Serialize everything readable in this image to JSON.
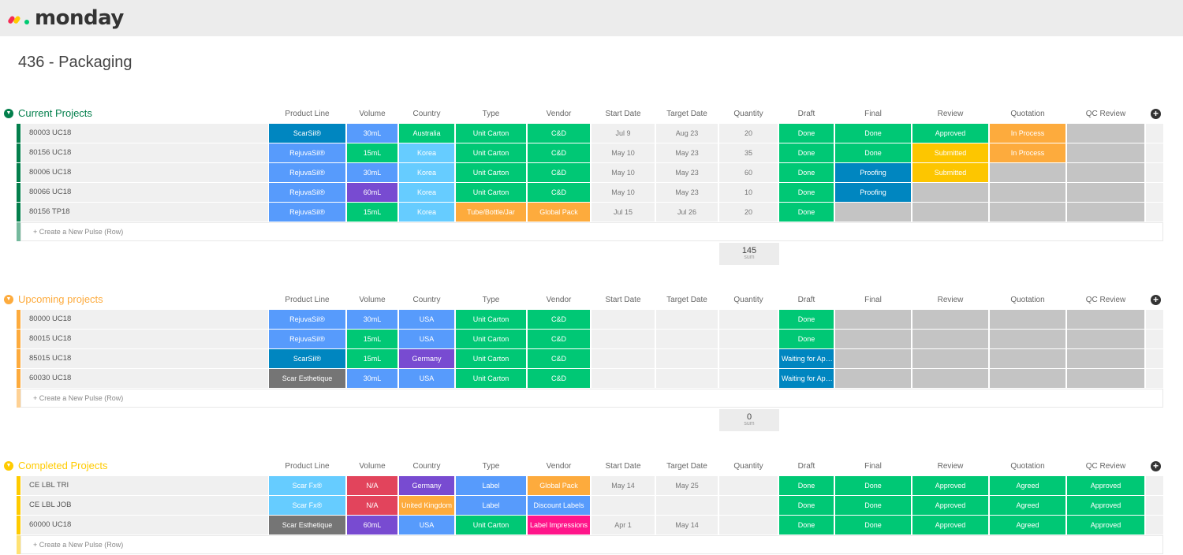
{
  "app": {
    "logo_text": "monday",
    "logo_colors": [
      "#f62b54",
      "#ffcb00",
      "#00ca72"
    ]
  },
  "board": {
    "title": "436 - Packaging"
  },
  "columns": {
    "product_line": "Product Line",
    "volume": "Volume",
    "country": "Country",
    "type": "Type",
    "vendor": "Vendor",
    "start_date": "Start Date",
    "target_date": "Target Date",
    "quantity": "Quantity",
    "draft": "Draft",
    "final": "Final",
    "review": "Review",
    "quotation": "Quotation",
    "qc_review": "QC Review"
  },
  "create_label": "+ Create a New Pulse (Row)",
  "sum_label": "sum",
  "colors": {
    "done": "#00c875",
    "proofing": "#0086c0",
    "approved": "#00c875",
    "submitted": "#fdc600",
    "in_process": "#fdab3d",
    "empty": "#c4c4c4",
    "scarsil": "#0086c0",
    "rejuvasil": "#579bfc",
    "scarfx": "#66ccff",
    "scaresth": "#757575",
    "ml30": "#579bfc",
    "ml15": "#00c875",
    "ml60": "#784bd1",
    "na": "#e2445c",
    "australia": "#00c875",
    "korea": "#66ccff",
    "usa": "#579bfc",
    "germany": "#784bd1",
    "uk": "#fdab3d",
    "unitcarton": "#00c875",
    "tube": "#fdab3d",
    "label": "#579bfc",
    "cd": "#00c875",
    "globalpack": "#fdab3d",
    "discount": "#579bfc",
    "labelimp": "#ff158a",
    "waiting": "#0086c0",
    "agreed": "#00c875"
  },
  "groups": [
    {
      "title": "Current Projects",
      "color": "#037f4c",
      "sum": "145",
      "rows": [
        {
          "name": "80003 UC18",
          "product": "ScarSil®",
          "volume": "30mL",
          "country": "Australia",
          "type": "Unit Carton",
          "vendor": "C&D",
          "start": "Jul 9",
          "target": "Aug 23",
          "qty": "20",
          "draft": "Done",
          "final": "Done",
          "review": "Approved",
          "quotation": "In Process",
          "qc": ""
        },
        {
          "name": "80156 UC18",
          "product": "RejuvaSil®",
          "volume": "15mL",
          "country": "Korea",
          "type": "Unit Carton",
          "vendor": "C&D",
          "start": "May 10",
          "target": "May 23",
          "qty": "35",
          "draft": "Done",
          "final": "Done",
          "review": "Submitted",
          "quotation": "In Process",
          "qc": ""
        },
        {
          "name": "80006 UC18",
          "product": "RejuvaSil®",
          "volume": "30mL",
          "country": "Korea",
          "type": "Unit Carton",
          "vendor": "C&D",
          "start": "May 10",
          "target": "May 23",
          "qty": "60",
          "draft": "Done",
          "final": "Proofing",
          "review": "Submitted",
          "quotation": "",
          "qc": ""
        },
        {
          "name": "80066 UC18",
          "product": "RejuvaSil®",
          "volume": "60mL",
          "country": "Korea",
          "type": "Unit Carton",
          "vendor": "C&D",
          "start": "May 10",
          "target": "May 23",
          "qty": "10",
          "draft": "Done",
          "final": "Proofing",
          "review": "",
          "quotation": "",
          "qc": ""
        },
        {
          "name": "80156 TP18",
          "product": "RejuvaSil®",
          "volume": "15mL",
          "country": "Korea",
          "type": "Tube/Bottle/Jar",
          "vendor": "Global Pack",
          "start": "Jul 15",
          "target": "Jul 26",
          "qty": "20",
          "draft": "Done",
          "final": "",
          "review": "",
          "quotation": "",
          "qc": ""
        }
      ]
    },
    {
      "title": "Upcoming projects",
      "color": "#fdab3d",
      "sum": "0",
      "rows": [
        {
          "name": "80000 UC18",
          "product": "RejuvaSil®",
          "volume": "30mL",
          "country": "USA",
          "type": "Unit Carton",
          "vendor": "C&D",
          "start": "",
          "target": "",
          "qty": "",
          "draft": "Done",
          "final": "",
          "review": "",
          "quotation": "",
          "qc": ""
        },
        {
          "name": "80015 UC18",
          "product": "RejuvaSil®",
          "volume": "15mL",
          "country": "USA",
          "type": "Unit Carton",
          "vendor": "C&D",
          "start": "",
          "target": "",
          "qty": "",
          "draft": "Done",
          "final": "",
          "review": "",
          "quotation": "",
          "qc": ""
        },
        {
          "name": "85015 UC18",
          "product": "ScarSil®",
          "volume": "15mL",
          "country": "Germany",
          "type": "Unit Carton",
          "vendor": "C&D",
          "start": "",
          "target": "",
          "qty": "",
          "draft": "Waiting for App...",
          "final": "",
          "review": "",
          "quotation": "",
          "qc": ""
        },
        {
          "name": "60030 UC18",
          "product": "Scar Esthetique",
          "volume": "30mL",
          "country": "USA",
          "type": "Unit Carton",
          "vendor": "C&D",
          "start": "",
          "target": "",
          "qty": "",
          "draft": "Waiting for App...",
          "final": "",
          "review": "",
          "quotation": "",
          "qc": ""
        }
      ]
    },
    {
      "title": "Completed Projects",
      "color": "#ffcb00",
      "sum": "",
      "rows": [
        {
          "name": "CE LBL TRI",
          "product": "Scar Fx®",
          "volume": "N/A",
          "country": "Germany",
          "type": "Label",
          "vendor": "Global Pack",
          "start": "May 14",
          "target": "May 25",
          "qty": "",
          "draft": "Done",
          "final": "Done",
          "review": "Approved",
          "quotation": "Agreed",
          "qc": "Approved"
        },
        {
          "name": "CE LBL JOB",
          "product": "Scar Fx®",
          "volume": "N/A",
          "country": "United Kingdom",
          "type": "Label",
          "vendor": "Discount Labels",
          "start": "",
          "target": "",
          "qty": "",
          "draft": "Done",
          "final": "Done",
          "review": "Approved",
          "quotation": "Agreed",
          "qc": "Approved"
        },
        {
          "name": "60000 UC18",
          "product": "Scar Esthetique",
          "volume": "60mL",
          "country": "USA",
          "type": "Unit Carton",
          "vendor": "Label Impressions",
          "start": "Apr 1",
          "target": "May 14",
          "qty": "",
          "draft": "Done",
          "final": "Done",
          "review": "Approved",
          "quotation": "Agreed",
          "qc": "Approved"
        }
      ]
    }
  ]
}
